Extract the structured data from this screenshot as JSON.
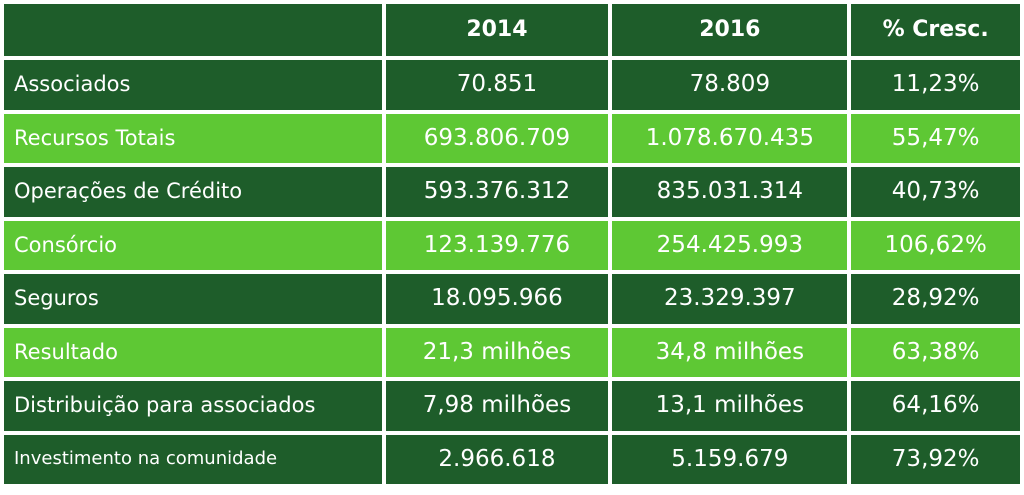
{
  "table": {
    "headers": [
      "",
      "2014",
      "2016",
      "% Cresc."
    ],
    "rows": [
      {
        "label": "Associados",
        "y2014": "70.851",
        "y2016": "78.809",
        "growth": "11,23%"
      },
      {
        "label": "Recursos Totais",
        "y2014": "693.806.709",
        "y2016": "1.078.670.435",
        "growth": "55,47%"
      },
      {
        "label": "Operações de Crédito",
        "y2014": "593.376.312",
        "y2016": "835.031.314",
        "growth": "40,73%"
      },
      {
        "label": "Consórcio",
        "y2014": "123.139.776",
        "y2016": "254.425.993",
        "growth": "106,62%"
      },
      {
        "label": "Seguros",
        "y2014": "18.095.966",
        "y2016": "23.329.397",
        "growth": "28,92%"
      },
      {
        "label": "Resultado",
        "y2014": "21,3 milhões",
        "y2016": "34,8 milhões",
        "growth": "63,38%"
      },
      {
        "label": "Distribuição para associados",
        "y2014": "7,98 milhões",
        "y2016": "13,1 milhões",
        "growth": "64,16%"
      },
      {
        "label": "Investimento na comunidade",
        "y2014": "2.966.618",
        "y2016": "5.159.679",
        "growth": "73,92%"
      }
    ]
  },
  "colors": {
    "dark_green": "#1e5d2a",
    "light_green": "#5ec834",
    "text": "#ffffff"
  }
}
